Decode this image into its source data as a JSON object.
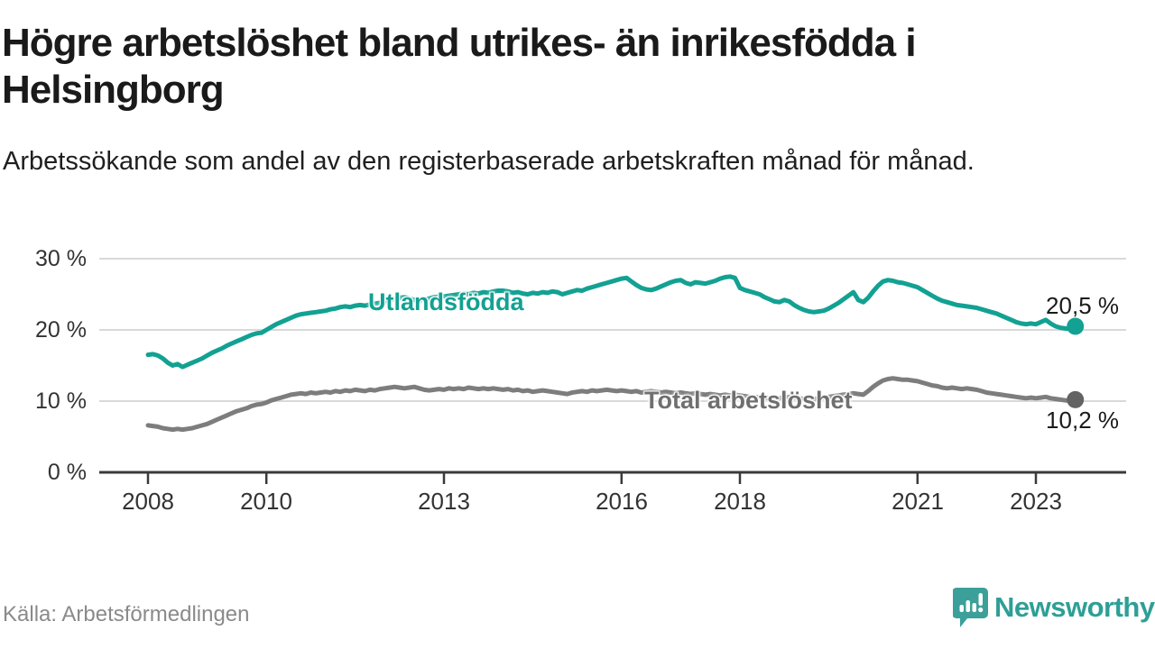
{
  "header": {
    "title": "Högre arbetslöshet bland utrikes- än inrikesfödda i Helsingborg",
    "subtitle": "Arbetssökande som andel av den registerbaserade arbetskraften månad för månad."
  },
  "footer": {
    "source": "Källa: Arbetsförmedlingen",
    "brand": "Newsworthy"
  },
  "colors": {
    "accent_teal": "#12a192",
    "series_gray": "#7d7d7d",
    "gray_label": "#6f6f6f",
    "gray_dot": "#636363",
    "logo_teal": "#3ba099",
    "grid": "#d9d9d9",
    "axis": "#3a3a3a",
    "text_dark": "#1a1a1a",
    "muted": "#8a8a8a"
  },
  "chart_data": {
    "type": "line",
    "title": "Högre arbetslöshet bland utrikes- än inrikesfödda i Helsingborg",
    "xlabel": "",
    "ylabel": "Arbetssökande som andel av den registerbaserade arbetskraften",
    "frequency": "monthly",
    "x_start_year": 2008,
    "x_start_month": 1,
    "x_end_year": 2023,
    "x_end_month": 9,
    "x_tick_years": [
      2008,
      2010,
      2013,
      2016,
      2018,
      2021,
      2023
    ],
    "x_tick_labels": [
      "2008",
      "2010",
      "2013",
      "2016",
      "2018",
      "2021",
      "2023"
    ],
    "y_ticks": [
      0,
      10,
      20,
      30
    ],
    "y_tick_labels": [
      "0 %",
      "10 %",
      "20 %",
      "30 %"
    ],
    "ylim": [
      0,
      32
    ],
    "grid": "horizontal",
    "legend_position": "inline-labels",
    "series": [
      {
        "name": "Utlandsfödda",
        "color": "#12a192",
        "label_color": "#12a192",
        "dot_color": "#12a192",
        "end_label": "20,5 %",
        "end_value": 20.5,
        "values": [
          16.5,
          16.6,
          16.4,
          16.0,
          15.4,
          15.0,
          15.2,
          14.8,
          15.1,
          15.4,
          15.7,
          16.0,
          16.4,
          16.8,
          17.1,
          17.4,
          17.8,
          18.1,
          18.4,
          18.7,
          19.0,
          19.3,
          19.5,
          19.6,
          20.0,
          20.4,
          20.8,
          21.1,
          21.4,
          21.7,
          22.0,
          22.2,
          22.3,
          22.4,
          22.5,
          22.6,
          22.7,
          22.9,
          23.0,
          23.2,
          23.3,
          23.2,
          23.4,
          23.5,
          23.4,
          23.6,
          23.7,
          23.8,
          24.0,
          24.2,
          24.4,
          24.5,
          24.6,
          24.4,
          24.2,
          24.1,
          24.3,
          24.4,
          24.6,
          24.7,
          24.7,
          24.8,
          24.9,
          25.0,
          25.1,
          25.0,
          25.2,
          25.1,
          25.3,
          25.2,
          25.4,
          25.5,
          25.5,
          25.4,
          25.2,
          25.3,
          25.1,
          25.0,
          25.2,
          25.1,
          25.3,
          25.2,
          25.4,
          25.3,
          25.0,
          25.2,
          25.4,
          25.6,
          25.5,
          25.8,
          26.0,
          26.2,
          26.4,
          26.6,
          26.8,
          27.0,
          27.2,
          27.3,
          26.8,
          26.3,
          25.9,
          25.7,
          25.6,
          25.8,
          26.1,
          26.4,
          26.7,
          26.9,
          27.0,
          26.6,
          26.4,
          26.7,
          26.6,
          26.5,
          26.7,
          26.9,
          27.2,
          27.4,
          27.5,
          27.3,
          25.9,
          25.6,
          25.4,
          25.2,
          25.0,
          24.6,
          24.3,
          24.0,
          23.9,
          24.2,
          24.0,
          23.5,
          23.1,
          22.8,
          22.6,
          22.5,
          22.6,
          22.7,
          23.0,
          23.4,
          23.8,
          24.3,
          24.8,
          25.3,
          24.2,
          23.9,
          24.5,
          25.4,
          26.2,
          26.8,
          27.0,
          26.9,
          26.7,
          26.6,
          26.4,
          26.2,
          26.0,
          25.6,
          25.2,
          24.8,
          24.4,
          24.1,
          23.9,
          23.7,
          23.5,
          23.4,
          23.3,
          23.2,
          23.1,
          22.9,
          22.7,
          22.5,
          22.3,
          22.0,
          21.7,
          21.4,
          21.1,
          20.9,
          20.8,
          20.9,
          20.8,
          21.1,
          21.4,
          20.9,
          20.5,
          20.3,
          20.2,
          20.1,
          20.5
        ]
      },
      {
        "name": "Total arbetslöshet",
        "color": "#7d7d7d",
        "label_color": "#6f6f6f",
        "dot_color": "#636363",
        "end_label": "10,2 %",
        "end_value": 10.2,
        "values": [
          6.6,
          6.5,
          6.4,
          6.2,
          6.1,
          6.0,
          6.1,
          6.0,
          6.1,
          6.2,
          6.4,
          6.6,
          6.8,
          7.1,
          7.4,
          7.7,
          8.0,
          8.3,
          8.6,
          8.8,
          9.0,
          9.3,
          9.5,
          9.6,
          9.8,
          10.1,
          10.3,
          10.5,
          10.7,
          10.9,
          11.0,
          11.1,
          11.0,
          11.2,
          11.1,
          11.2,
          11.3,
          11.2,
          11.4,
          11.3,
          11.5,
          11.4,
          11.6,
          11.5,
          11.4,
          11.6,
          11.5,
          11.7,
          11.8,
          11.9,
          12.0,
          11.9,
          11.8,
          11.9,
          12.0,
          11.8,
          11.6,
          11.5,
          11.6,
          11.7,
          11.6,
          11.8,
          11.7,
          11.8,
          11.7,
          11.9,
          11.8,
          11.7,
          11.8,
          11.7,
          11.8,
          11.7,
          11.6,
          11.7,
          11.5,
          11.6,
          11.4,
          11.5,
          11.3,
          11.4,
          11.5,
          11.4,
          11.3,
          11.2,
          11.1,
          11.0,
          11.2,
          11.3,
          11.4,
          11.3,
          11.5,
          11.4,
          11.5,
          11.6,
          11.5,
          11.4,
          11.5,
          11.4,
          11.3,
          11.4,
          11.2,
          11.3,
          11.4,
          11.3,
          11.2,
          11.3,
          11.2,
          11.1,
          11.2,
          11.1,
          11.0,
          11.1,
          11.0,
          10.9,
          11.0,
          10.9,
          10.8,
          10.9,
          10.8,
          10.9,
          10.8,
          10.7,
          10.6,
          10.5,
          10.6,
          10.5,
          10.4,
          10.5,
          10.4,
          10.5,
          10.6,
          10.5,
          10.4,
          10.3,
          10.4,
          10.3,
          10.4,
          10.5,
          10.6,
          10.7,
          10.8,
          10.9,
          11.0,
          11.1,
          11.0,
          10.9,
          11.4,
          12.0,
          12.5,
          12.9,
          13.1,
          13.2,
          13.1,
          13.0,
          13.0,
          12.9,
          12.8,
          12.6,
          12.4,
          12.2,
          12.1,
          11.9,
          11.8,
          11.9,
          11.8,
          11.7,
          11.8,
          11.7,
          11.6,
          11.4,
          11.2,
          11.1,
          11.0,
          10.9,
          10.8,
          10.7,
          10.6,
          10.5,
          10.4,
          10.5,
          10.4,
          10.5,
          10.6,
          10.4,
          10.3,
          10.2,
          10.1,
          10.1,
          10.2
        ]
      }
    ]
  }
}
